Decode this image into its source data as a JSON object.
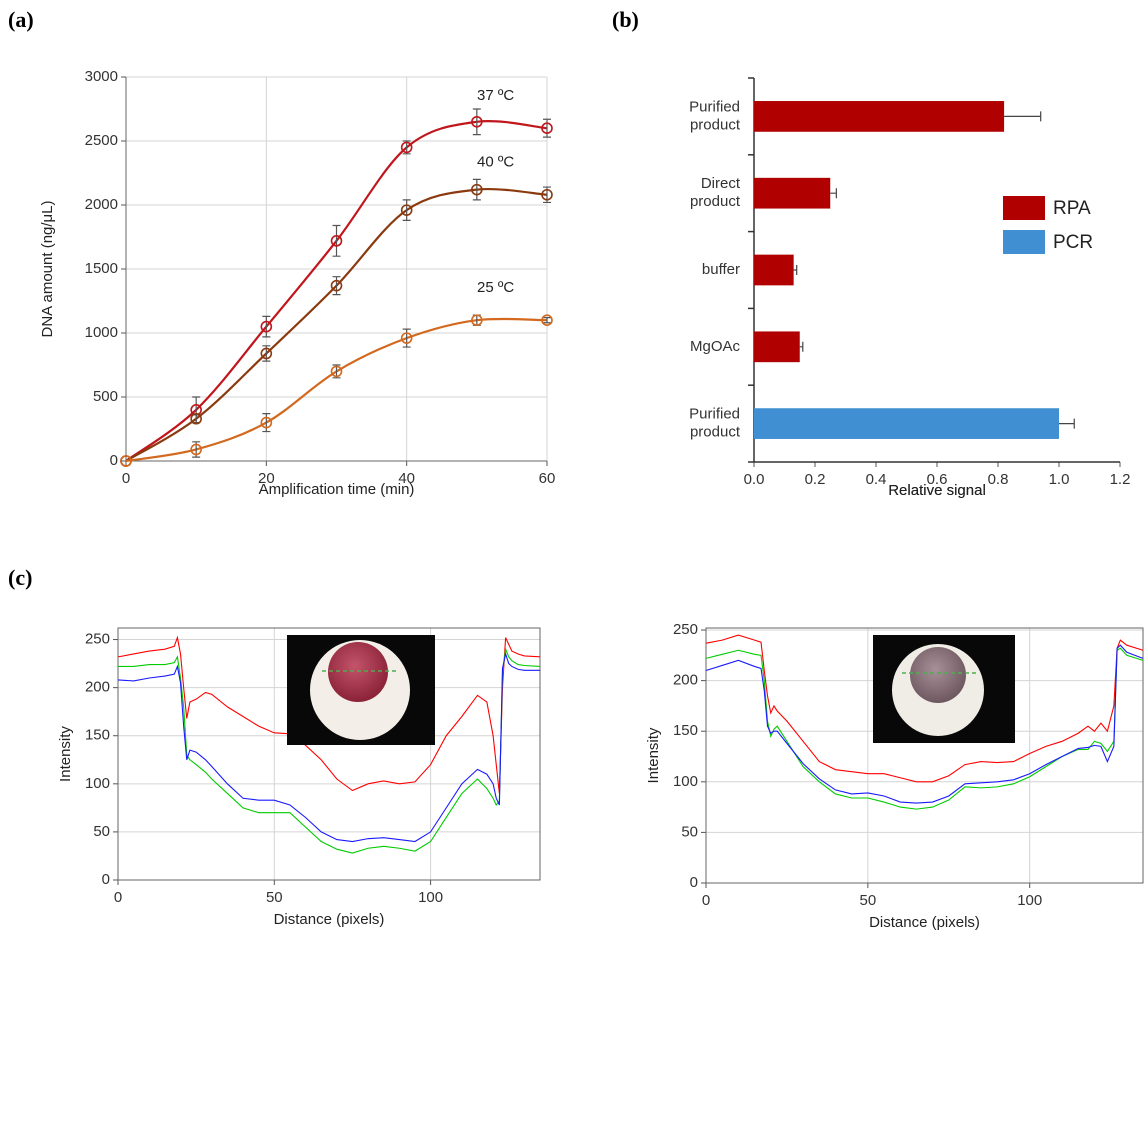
{
  "panels": [
    "(a)",
    "(b)",
    "(c)"
  ],
  "chart_data": [
    {
      "type": "line",
      "smooth": true,
      "markers": true,
      "grid": true,
      "xlabel": "Amplification time (min)",
      "ylabel": "DNA amount (ng/μL)",
      "x": [
        0,
        10,
        20,
        30,
        40,
        50,
        60
      ],
      "xlim": [
        0,
        60
      ],
      "xticks": [
        0,
        20,
        40,
        60
      ],
      "ylim": [
        0,
        3000
      ],
      "yticks": [
        0,
        500,
        1000,
        1500,
        2000,
        2500,
        3000
      ],
      "series": [
        {
          "name": "37 ºC",
          "color": "#c0161c",
          "values": [
            0,
            400,
            1050,
            1720,
            2450,
            2650,
            2600
          ],
          "errors": [
            0,
            100,
            80,
            120,
            50,
            100,
            70
          ]
        },
        {
          "name": "40 ºC",
          "color": "#8b3a0f",
          "values": [
            0,
            330,
            840,
            1370,
            1960,
            2120,
            2080
          ],
          "errors": [
            0,
            30,
            60,
            70,
            80,
            80,
            60
          ]
        },
        {
          "name": "25 ºC",
          "color": "#d2691e",
          "values": [
            0,
            90,
            300,
            700,
            960,
            1100,
            1100
          ],
          "errors": [
            0,
            60,
            70,
            50,
            70,
            40,
            20
          ]
        }
      ]
    },
    {
      "type": "bar",
      "orientation": "horizontal",
      "legend": "right",
      "xlabel": "Relative signal",
      "categories": [
        "Purified product",
        "Direct product",
        "buffer",
        "MgOAc",
        "Purified product"
      ],
      "xlim": [
        0,
        1.2
      ],
      "xticks": [
        {
          "value": 0,
          "label": "0.0"
        },
        0.2,
        0.4,
        0.6,
        0.8,
        {
          "value": 1,
          "label": "1.0"
        },
        1.2
      ],
      "series": [
        {
          "name": "RPA",
          "color": "#b00000",
          "values": [
            0.82,
            0.25,
            0.13,
            0.15,
            null
          ],
          "errors": [
            0.12,
            0.02,
            0.01,
            0.01,
            null
          ]
        },
        {
          "name": "PCR",
          "color": "#3f8fd2",
          "values": [
            null,
            null,
            null,
            null,
            1.0
          ],
          "errors": [
            null,
            null,
            null,
            null,
            0.05
          ]
        }
      ]
    },
    {
      "type": "line",
      "grid": true,
      "frame": true,
      "xlabel": "Distance (pixels)",
      "ylabel": "Intensity",
      "x": [
        0,
        5,
        10,
        15,
        18,
        19,
        20,
        21,
        22,
        23,
        25,
        28,
        30,
        35,
        40,
        45,
        50,
        55,
        60,
        65,
        70,
        75,
        80,
        85,
        90,
        95,
        100,
        105,
        110,
        115,
        118,
        120,
        121,
        122,
        123,
        124,
        125,
        126,
        128,
        130,
        135
      ],
      "xlim": [
        0,
        135
      ],
      "xticks": [
        0,
        50,
        100
      ],
      "ylim": [
        0,
        262
      ],
      "yticks": [
        0,
        50,
        100,
        150,
        200,
        250
      ],
      "series": [
        {
          "color": "#ff0000",
          "values": [
            232,
            235,
            238,
            240,
            243,
            252,
            235,
            200,
            168,
            185,
            188,
            195,
            193,
            180,
            170,
            160,
            153,
            152,
            140,
            125,
            105,
            93,
            100,
            103,
            100,
            102,
            120,
            150,
            170,
            192,
            185,
            150,
            120,
            90,
            200,
            252,
            245,
            238,
            235,
            233,
            232
          ]
        },
        {
          "color": "#00cc00",
          "values": [
            222,
            222,
            224,
            224,
            226,
            232,
            210,
            180,
            130,
            125,
            120,
            112,
            105,
            90,
            75,
            70,
            70,
            70,
            55,
            40,
            32,
            28,
            33,
            35,
            33,
            30,
            40,
            65,
            90,
            105,
            95,
            85,
            78,
            82,
            215,
            240,
            232,
            228,
            224,
            223,
            222
          ]
        },
        {
          "color": "#1a1aff",
          "values": [
            208,
            207,
            210,
            212,
            214,
            222,
            205,
            160,
            125,
            135,
            133,
            125,
            118,
            100,
            85,
            83,
            83,
            78,
            65,
            50,
            42,
            40,
            43,
            44,
            42,
            40,
            50,
            75,
            100,
            115,
            110,
            100,
            85,
            78,
            220,
            235,
            225,
            222,
            219,
            218,
            218
          ]
        }
      ]
    },
    {
      "type": "line",
      "grid": true,
      "frame": true,
      "xlabel": "Distance (pixels)",
      "ylabel": "Intensity",
      "x": [
        0,
        5,
        10,
        15,
        17,
        18,
        19,
        20,
        21,
        22,
        25,
        30,
        35,
        40,
        45,
        50,
        55,
        60,
        65,
        70,
        75,
        80,
        85,
        90,
        95,
        100,
        105,
        110,
        115,
        118,
        120,
        122,
        124,
        126,
        127,
        128,
        130,
        135
      ],
      "xlim": [
        0,
        135
      ],
      "xticks": [
        0,
        50,
        100
      ],
      "ylim": [
        0,
        252
      ],
      "yticks": [
        0,
        50,
        100,
        150,
        200,
        250
      ],
      "series": [
        {
          "color": "#ff0000",
          "values": [
            237,
            240,
            245,
            240,
            238,
            210,
            185,
            168,
            175,
            170,
            160,
            140,
            120,
            112,
            110,
            108,
            108,
            104,
            100,
            100,
            106,
            117,
            120,
            119,
            120,
            128,
            135,
            140,
            148,
            155,
            150,
            158,
            150,
            175,
            232,
            240,
            235,
            230
          ]
        },
        {
          "color": "#00cc00",
          "values": [
            222,
            226,
            230,
            226,
            225,
            200,
            160,
            145,
            152,
            155,
            140,
            115,
            100,
            88,
            84,
            84,
            80,
            75,
            73,
            75,
            82,
            95,
            94,
            95,
            98,
            105,
            115,
            125,
            132,
            132,
            140,
            138,
            130,
            140,
            230,
            232,
            225,
            220
          ]
        },
        {
          "color": "#1a1aff",
          "values": [
            210,
            215,
            220,
            214,
            212,
            190,
            155,
            148,
            150,
            150,
            138,
            118,
            103,
            92,
            88,
            89,
            86,
            80,
            79,
            80,
            86,
            98,
            99,
            100,
            102,
            108,
            117,
            125,
            133,
            134,
            136,
            135,
            120,
            135,
            232,
            235,
            228,
            222
          ]
        }
      ]
    }
  ]
}
